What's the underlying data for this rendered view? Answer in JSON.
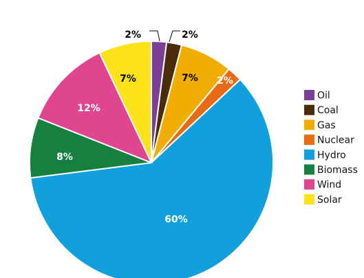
{
  "chart_data": {
    "type": "pie",
    "series": [
      {
        "name": "Oil",
        "value": 2,
        "label": "2%",
        "color": "#7b3f98"
      },
      {
        "name": "Coal",
        "value": 2,
        "label": "2%",
        "color": "#4a2c0a"
      },
      {
        "name": "Gas",
        "value": 7,
        "label": "7%",
        "color": "#f2ae00"
      },
      {
        "name": "Nuclear",
        "value": 2,
        "label": "2%",
        "color": "#e86b14"
      },
      {
        "name": "Hydro",
        "value": 60,
        "label": "60%",
        "color": "#11a0dc"
      },
      {
        "name": "Biomass",
        "value": 8,
        "label": "8%",
        "color": "#158040"
      },
      {
        "name": "Wind",
        "value": 12,
        "label": "12%",
        "color": "#e0458f"
      },
      {
        "name": "Solar",
        "value": 7,
        "label": "7%",
        "color": "#fbe21a"
      }
    ],
    "legend_position": "right",
    "label_colors": {
      "dark": "#000000",
      "light": "#ffffff"
    }
  }
}
